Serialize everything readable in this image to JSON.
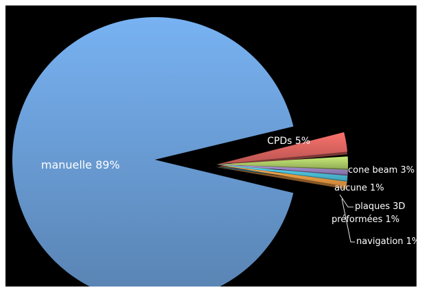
{
  "chart_data": {
    "type": "pie",
    "style": "3d-exploded",
    "title": "",
    "slices": [
      {
        "label": "manuelle",
        "value": 89,
        "text": "manuelle 89%",
        "color": "#6b9fd8"
      },
      {
        "label": "CPDs",
        "value": 5,
        "text": "CPDs 5%",
        "color": "#e06661"
      },
      {
        "label": "cone beam",
        "value": 3,
        "text": "cone beam 3%",
        "color": "#b3d36b"
      },
      {
        "label": "aucune",
        "value": 1,
        "text": "aucune 1%",
        "color": "#9b85c6"
      },
      {
        "label": "plaques 3D préformées",
        "value": 1,
        "text": [
          "plaques 3D",
          "préformées 1%"
        ],
        "color": "#4fc4df"
      },
      {
        "label": "navigation",
        "value": 1,
        "text": "navigation 1%",
        "color": "#f6a046"
      }
    ]
  }
}
